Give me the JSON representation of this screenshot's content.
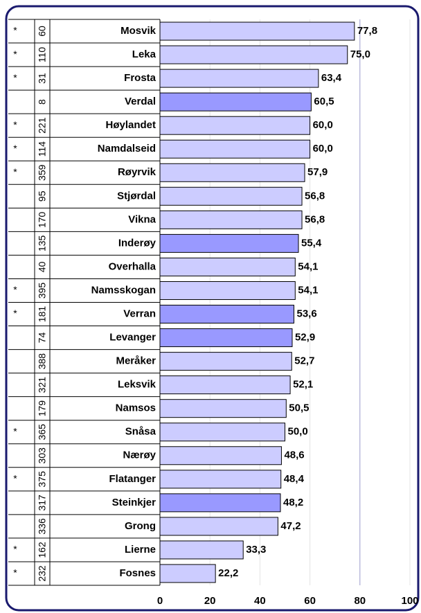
{
  "chart_data": {
    "type": "bar",
    "orientation": "horizontal",
    "categories": [
      "Mosvik",
      "Leka",
      "Frosta",
      "Verdal",
      "Høylandet",
      "Namdalseid",
      "Røyrvik",
      "Stjørdal",
      "Vikna",
      "Inderøy",
      "Overhalla",
      "Namsskogan",
      "Verran",
      "Levanger",
      "Meråker",
      "Leksvik",
      "Namsos",
      "Snåsa",
      "Nærøy",
      "Flatanger",
      "Steinkjer",
      "Grong",
      "Lierne",
      "Fosnes"
    ],
    "values": [
      77.8,
      75.0,
      63.4,
      60.5,
      60.0,
      60.0,
      57.9,
      56.8,
      56.8,
      55.4,
      54.1,
      54.1,
      53.6,
      52.9,
      52.7,
      52.1,
      50.5,
      50.0,
      48.6,
      48.4,
      48.2,
      47.2,
      33.3,
      22.2
    ],
    "value_labels": [
      "77,8",
      "75,0",
      "63,4",
      "60,5",
      "60,0",
      "60,0",
      "57,9",
      "56,8",
      "56,8",
      "55,4",
      "54,1",
      "54,1",
      "53,6",
      "52,9",
      "52,7",
      "52,1",
      "50,5",
      "50,0",
      "48,6",
      "48,4",
      "48,2",
      "47,2",
      "33,3",
      "22,2"
    ],
    "numbers": [
      "60",
      "110",
      "31",
      "8",
      "221",
      "114",
      "359",
      "95",
      "170",
      "135",
      "40",
      "395",
      "181",
      "74",
      "388",
      "321",
      "179",
      "365",
      "303",
      "375",
      "317",
      "336",
      "162",
      "232"
    ],
    "stars": [
      "*",
      "*",
      "*",
      null,
      "*",
      "*",
      "*",
      null,
      null,
      null,
      null,
      "*",
      "*",
      null,
      null,
      null,
      null,
      "*",
      null,
      "*",
      null,
      null,
      "*",
      "*"
    ],
    "colors": [
      "#ccccff",
      "#ccccff",
      "#ccccff",
      "#9999ff",
      "#ccccff",
      "#ccccff",
      "#ccccff",
      "#ccccff",
      "#ccccff",
      "#9999ff",
      "#ccccff",
      "#ccccff",
      "#9999ff",
      "#9999ff",
      "#ccccff",
      "#ccccff",
      "#ccccff",
      "#ccccff",
      "#ccccff",
      "#ccccff",
      "#9999ff",
      "#ccccff",
      "#ccccff",
      "#ccccff"
    ],
    "xlim": [
      0,
      100
    ],
    "xticks": [
      0,
      20,
      40,
      60,
      80,
      100
    ],
    "grid": true
  }
}
